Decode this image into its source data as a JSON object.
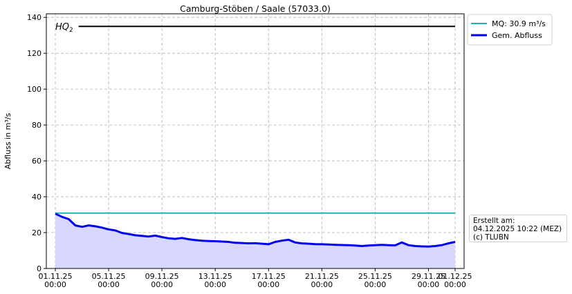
{
  "chart_data": {
    "type": "line",
    "title": "Camburg-Stöben / Saale (57033.0)",
    "ylabel": "Abfluss in m³/s",
    "xlabel": "",
    "ylim": [
      0,
      142
    ],
    "yticks": [
      0,
      20,
      40,
      60,
      80,
      100,
      120,
      140
    ],
    "xlim": [
      "2025-11-01 00:00",
      "2025-12-01 00:00"
    ],
    "xticks": [
      {
        "date": "2025-11-01",
        "line1": "01.11.25",
        "line2": "00:00"
      },
      {
        "date": "2025-11-05",
        "line1": "05.11.25",
        "line2": "00:00"
      },
      {
        "date": "2025-11-09",
        "line1": "09.11.25",
        "line2": "00:00"
      },
      {
        "date": "2025-11-13",
        "line1": "13.11.25",
        "line2": "00:00"
      },
      {
        "date": "2025-11-17",
        "line1": "17.11.25",
        "line2": "00:00"
      },
      {
        "date": "2025-11-21",
        "line1": "21.11.25",
        "line2": "00:00"
      },
      {
        "date": "2025-11-25",
        "line1": "25.11.25",
        "line2": "00:00"
      },
      {
        "date": "2025-11-29",
        "line1": "29.11.25",
        "line2": "00:00"
      },
      {
        "date": "2025-12-01",
        "line1": "01.12.25",
        "line2": "00:00"
      }
    ],
    "grid": true,
    "legend_position": "outside-top-right",
    "reference_lines": [
      {
        "label": "HQ",
        "subscript": "2",
        "value": 135,
        "color": "#000000",
        "x_start": "2025-11-02 18:00",
        "x_end": "2025-12-01 00:00"
      },
      {
        "label": "MQ: 30.9 m³/s",
        "value": 30.9,
        "color": "#1ab3b3",
        "x_start": "2025-11-01 00:00",
        "x_end": "2025-12-01 00:00"
      }
    ],
    "series": [
      {
        "name": "Gem. Abfluss",
        "color": "#0000ee",
        "fill": "#d8d8ff",
        "x": [
          "2025-11-01 00:00",
          "2025-11-01 12:00",
          "2025-11-02 00:00",
          "2025-11-02 12:00",
          "2025-11-03 00:00",
          "2025-11-03 12:00",
          "2025-11-04 00:00",
          "2025-11-04 12:00",
          "2025-11-05 00:00",
          "2025-11-05 12:00",
          "2025-11-06 00:00",
          "2025-11-06 12:00",
          "2025-11-07 00:00",
          "2025-11-07 12:00",
          "2025-11-08 00:00",
          "2025-11-08 12:00",
          "2025-11-09 00:00",
          "2025-11-09 12:00",
          "2025-11-10 00:00",
          "2025-11-10 12:00",
          "2025-11-11 00:00",
          "2025-11-11 12:00",
          "2025-11-12 00:00",
          "2025-11-12 12:00",
          "2025-11-13 00:00",
          "2025-11-13 12:00",
          "2025-11-14 00:00",
          "2025-11-14 12:00",
          "2025-11-15 00:00",
          "2025-11-15 12:00",
          "2025-11-16 00:00",
          "2025-11-16 12:00",
          "2025-11-17 00:00",
          "2025-11-17 12:00",
          "2025-11-18 00:00",
          "2025-11-18 12:00",
          "2025-11-19 00:00",
          "2025-11-19 12:00",
          "2025-11-20 00:00",
          "2025-11-20 12:00",
          "2025-11-21 00:00",
          "2025-11-21 12:00",
          "2025-11-22 00:00",
          "2025-11-22 12:00",
          "2025-11-23 00:00",
          "2025-11-23 12:00",
          "2025-11-24 00:00",
          "2025-11-24 12:00",
          "2025-11-25 00:00",
          "2025-11-25 12:00",
          "2025-11-26 00:00",
          "2025-11-26 12:00",
          "2025-11-27 00:00",
          "2025-11-27 12:00",
          "2025-11-28 00:00",
          "2025-11-28 12:00",
          "2025-11-29 00:00",
          "2025-11-29 12:00",
          "2025-11-30 00:00",
          "2025-11-30 12:00",
          "2025-12-01 00:00"
        ],
        "values": [
          30.5,
          28.8,
          27.5,
          24.0,
          23.2,
          24.0,
          23.5,
          22.8,
          21.8,
          21.2,
          19.8,
          19.2,
          18.5,
          18.2,
          17.8,
          18.3,
          17.5,
          16.8,
          16.5,
          17.0,
          16.3,
          15.8,
          15.5,
          15.3,
          15.2,
          15.0,
          14.8,
          14.3,
          14.2,
          14.0,
          14.1,
          13.8,
          13.5,
          14.8,
          15.5,
          16.0,
          14.5,
          14.0,
          13.8,
          13.6,
          13.5,
          13.4,
          13.2,
          13.1,
          13.0,
          12.8,
          12.5,
          12.8,
          13.0,
          13.2,
          13.0,
          12.9,
          14.5,
          13.0,
          12.5,
          12.3,
          12.2,
          12.5,
          13.0,
          14.0,
          14.8
        ]
      }
    ],
    "legend": [
      {
        "label": "MQ: 30.9 m³/s",
        "color": "#1ab3b3"
      },
      {
        "label": "Gem. Abfluss",
        "color": "#0000ee"
      }
    ],
    "info_box": [
      "Erstellt am:",
      "04.12.2025 10:22 (MEZ)",
      "(c) TLUBN"
    ]
  }
}
